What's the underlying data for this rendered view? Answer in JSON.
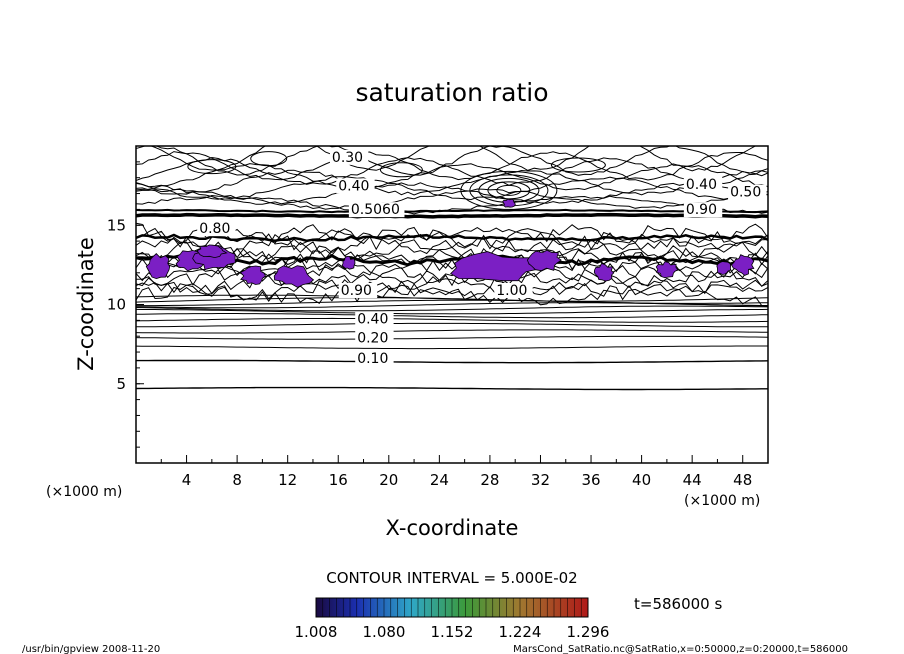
{
  "chart_data": {
    "type": "contour",
    "title": "saturation ratio",
    "xlabel": "X-coordinate",
    "ylabel": "Z-coordinate",
    "x_unit": "(×1000 m)",
    "y_unit": "(×1000 m)",
    "xlim": [
      0,
      50
    ],
    "ylim": [
      0,
      20
    ],
    "x_ticks": [
      "4",
      "8",
      "12",
      "16",
      "20",
      "24",
      "28",
      "32",
      "36",
      "40",
      "44",
      "48"
    ],
    "y_ticks": [
      "5",
      "10",
      "15"
    ],
    "contour_interval_text": "CONTOUR INTERVAL = 5.000E-02",
    "contour_labels": [
      {
        "value": "0.30",
        "x": 15.5,
        "z": 19.0
      },
      {
        "value": "0.40",
        "x": 16.0,
        "z": 17.2
      },
      {
        "value": "0.40",
        "x": 43.5,
        "z": 17.3
      },
      {
        "value": "0.50",
        "x": 47.0,
        "z": 16.8
      },
      {
        "value": "0.5060",
        "x": 17.0,
        "z": 15.7
      },
      {
        "value": "0.90",
        "x": 43.5,
        "z": 15.7
      },
      {
        "value": "0.80",
        "x": 5.0,
        "z": 14.5
      },
      {
        "value": "1.00",
        "x": 28.5,
        "z": 10.6
      },
      {
        "value": "0.90",
        "x": 16.2,
        "z": 10.6
      },
      {
        "value": "0.40",
        "x": 17.5,
        "z": 8.8
      },
      {
        "value": "0.20",
        "x": 17.5,
        "z": 7.6
      },
      {
        "value": "0.10",
        "x": 17.5,
        "z": 6.3
      }
    ],
    "shaded_regions_label": "saturation ratio > 1.0",
    "colorbar": {
      "tick_labels": [
        "1.008",
        "1.080",
        "1.152",
        "1.224",
        "1.296"
      ],
      "min": 1.008,
      "max": 1.296
    },
    "time_text": "t=586000 s",
    "colors": {
      "fill": "#7b1fc4",
      "line": "#000000"
    }
  },
  "footer": {
    "left": "/usr/bin/gpview   2008-11-20",
    "right": "MarsCond_SatRatio.nc@SatRatio,x=0:50000,z=0:20000,t=586000"
  }
}
